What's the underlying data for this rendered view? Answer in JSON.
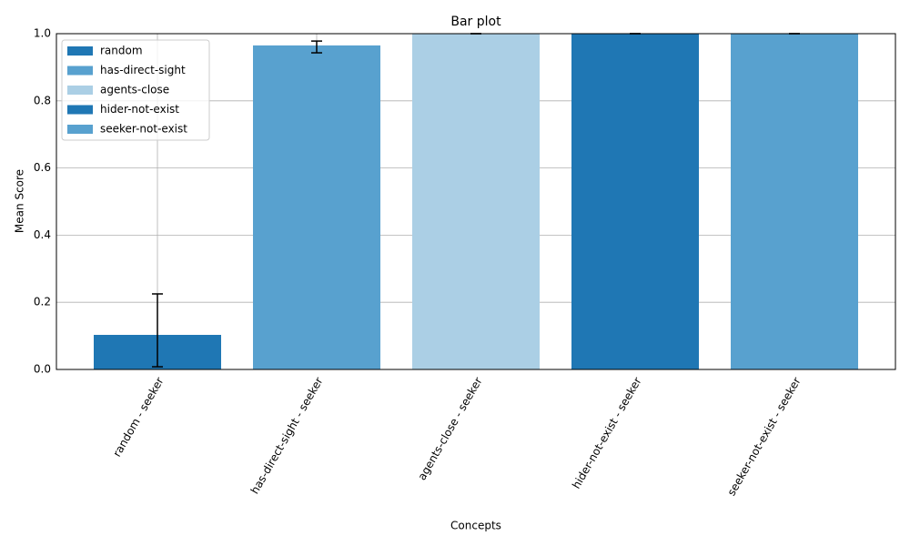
{
  "chart_data": {
    "type": "bar",
    "title": "Bar plot",
    "x_label": "Concepts",
    "y_label": "Mean Score",
    "categories": [
      "random - seeker",
      "has-direct-sight - seeker",
      "agents-close - seeker",
      "hider-not-exist - seeker",
      "seeker-not-exist - seeker"
    ],
    "values": [
      0.103,
      0.965,
      1.0,
      1.0,
      1.0
    ],
    "error_low": [
      0.095,
      0.022,
      0.0,
      0.0,
      0.0
    ],
    "error_high": [
      0.122,
      0.013,
      0.0,
      0.0,
      0.0
    ],
    "colors": [
      "#1f77b4",
      "#58a1cf",
      "#abcfe5",
      "#1f77b4",
      "#58a1cf"
    ],
    "legend": [
      "random",
      "has-direct-sight",
      "agents-close",
      "hider-not-exist",
      "seeker-not-exist"
    ],
    "legend_position": "upper left",
    "ylim": [
      0,
      1
    ],
    "yticks": [
      {
        "value": 0,
        "label": "0.0"
      },
      0.2,
      0.4,
      0.6,
      0.8,
      {
        "value": 1,
        "label": "1.0"
      }
    ],
    "grid": true
  }
}
